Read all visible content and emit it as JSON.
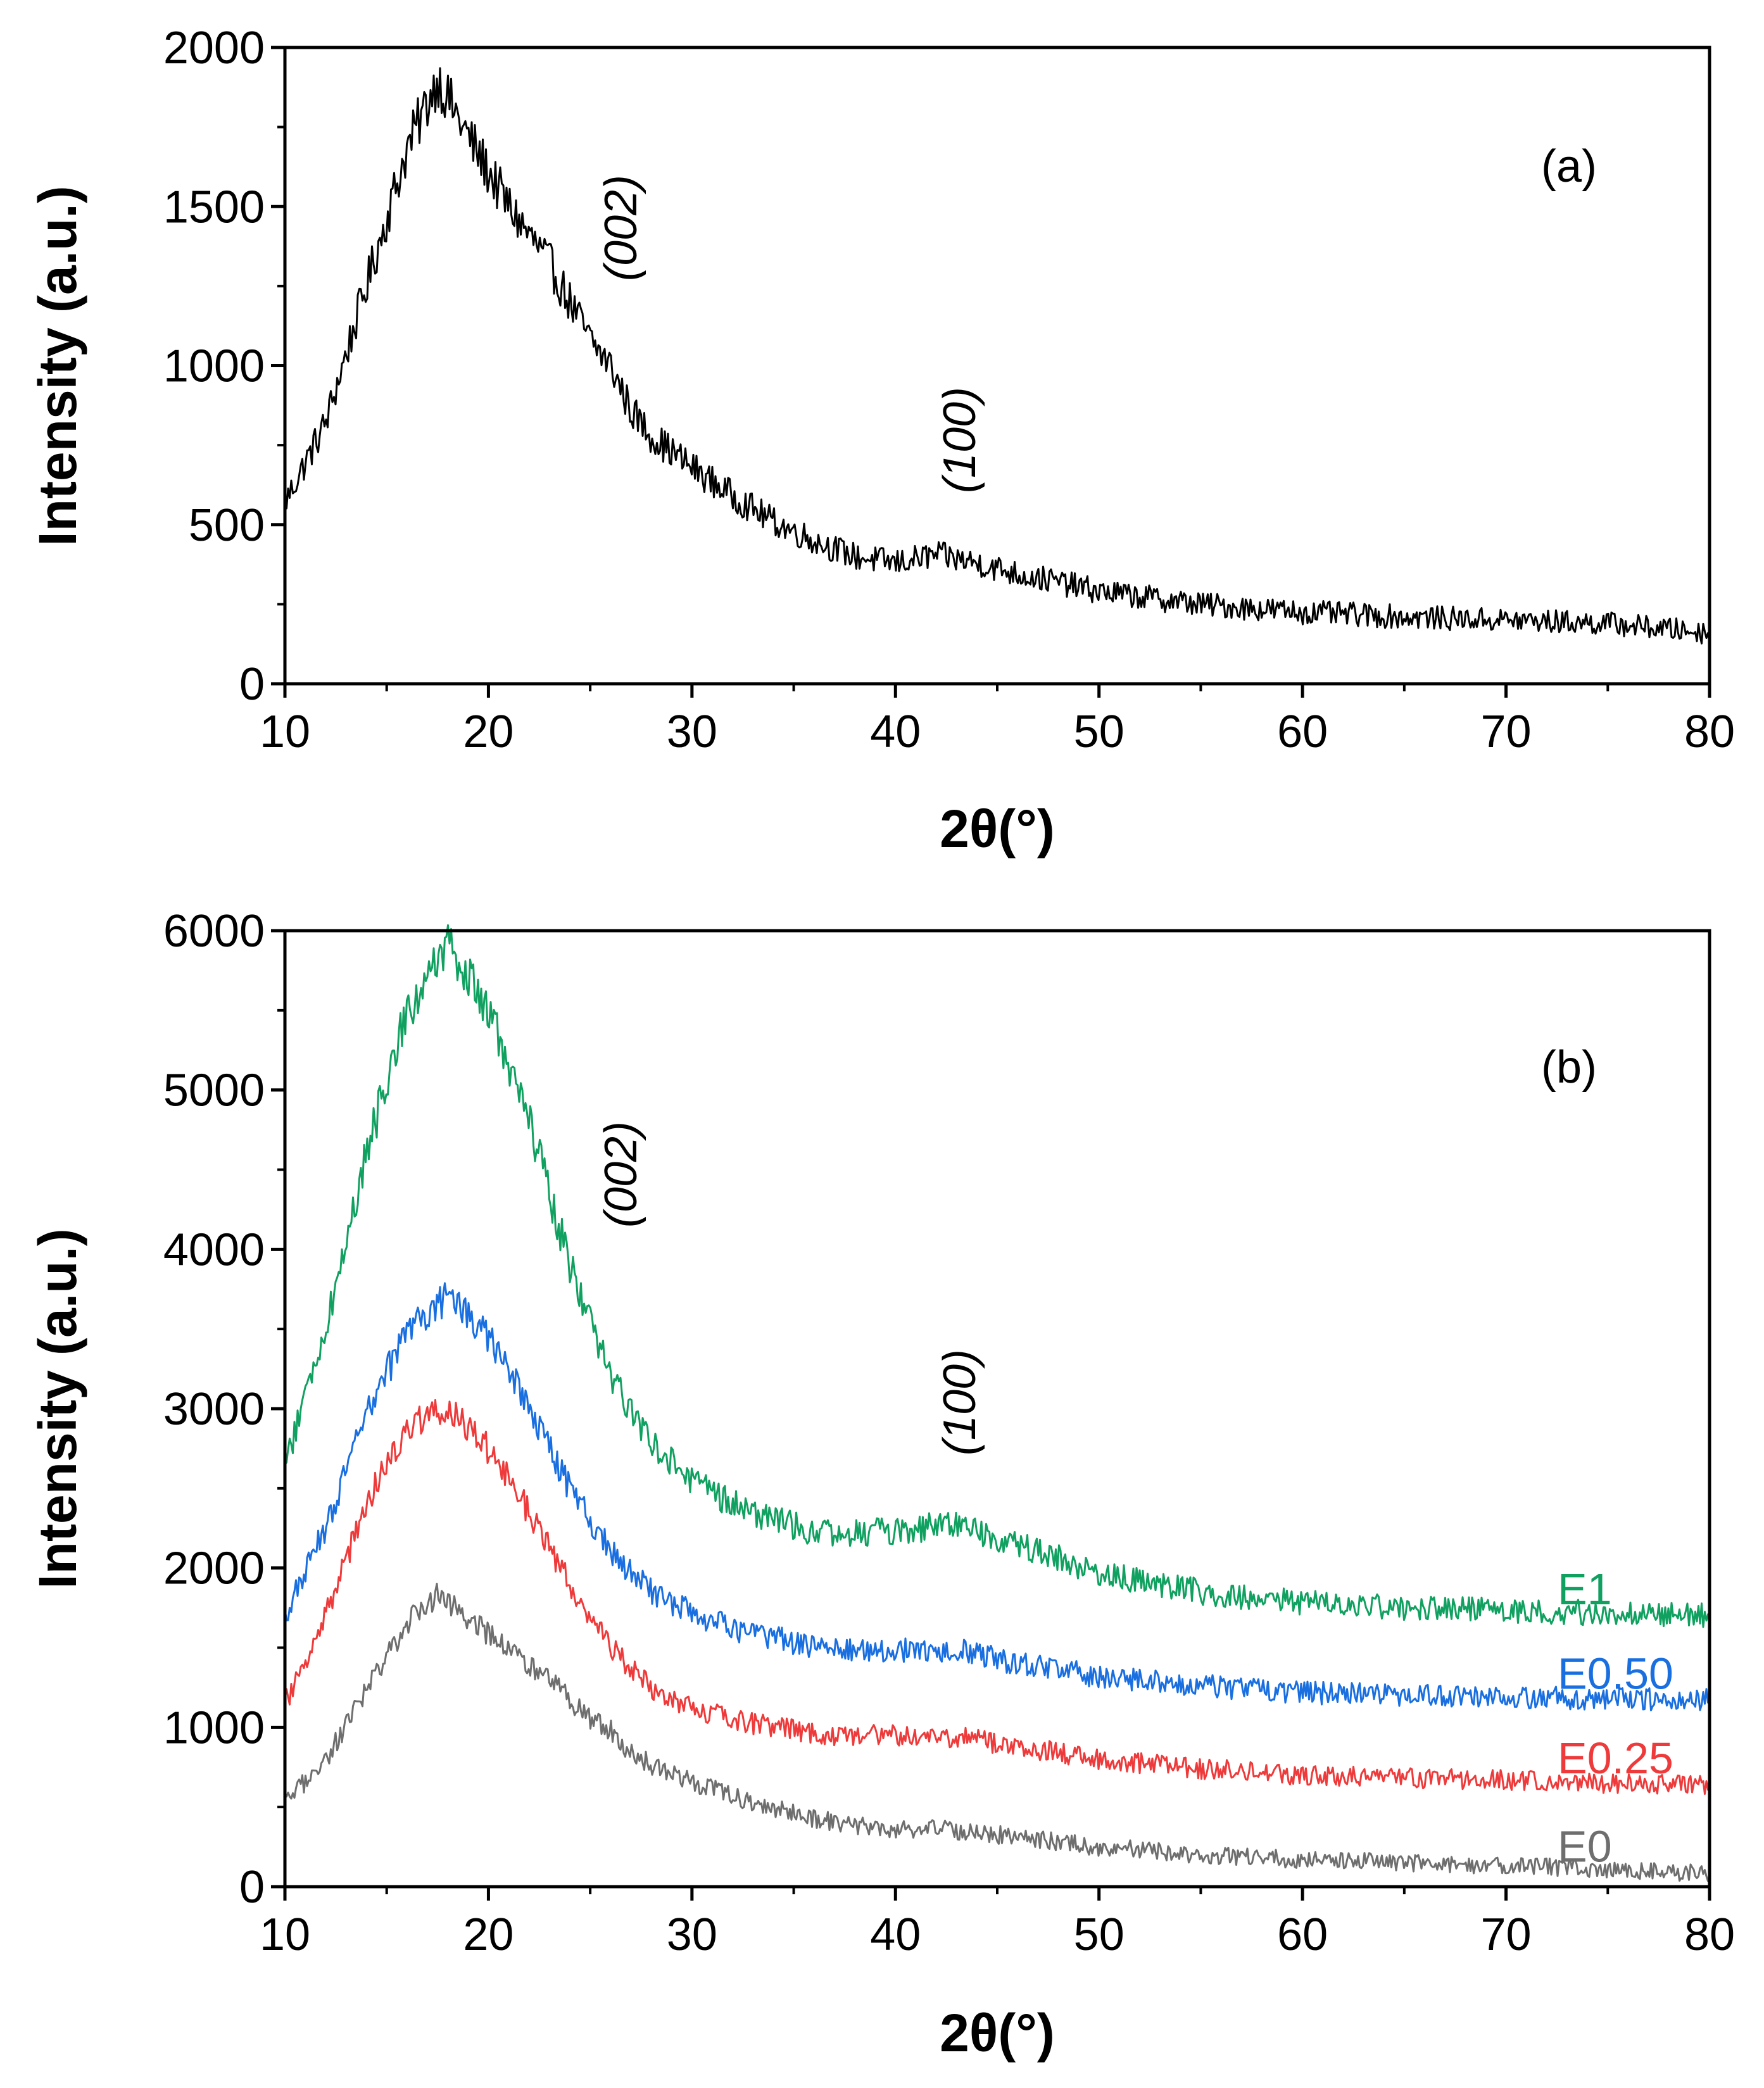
{
  "chart_data": [
    {
      "type": "line",
      "panel_label": "(a)",
      "xlabel": "2θ(°)",
      "ylabel": "Intensity (a.u.)",
      "xlim": [
        10,
        80
      ],
      "ylim": [
        0,
        2000
      ],
      "xticks": [
        "10",
        "20",
        "30",
        "40",
        "50",
        "60",
        "70",
        "80"
      ],
      "yticks": [
        "0",
        "500",
        "1000",
        "1500",
        "2000"
      ],
      "grid": false,
      "annotations": [
        {
          "text": "(002)",
          "x": 26.5,
          "y": 1500
        },
        {
          "text": "(100)",
          "x": 43,
          "y": 750
        }
      ],
      "series": [
        {
          "color": "#000000",
          "x": [
            10,
            12,
            14,
            16,
            17.5,
            19,
            21,
            23,
            25,
            26,
            27,
            28,
            30,
            32,
            34,
            36,
            38,
            40,
            42,
            44,
            46,
            48,
            50,
            55,
            60,
            65,
            70,
            75,
            80
          ],
          "values": [
            570,
            820,
            1250,
            1680,
            1900,
            1720,
            1500,
            1320,
            1080,
            1000,
            860,
            780,
            680,
            590,
            510,
            450,
            400,
            380,
            405,
            380,
            345,
            320,
            290,
            250,
            225,
            210,
            200,
            190,
            160
          ]
        }
      ]
    },
    {
      "type": "line",
      "panel_label": "(b)",
      "xlabel": "2θ(°)",
      "ylabel": "Intensity (a.u.)",
      "xlim": [
        10,
        80
      ],
      "ylim": [
        0,
        6000
      ],
      "xticks": [
        "10",
        "20",
        "30",
        "40",
        "50",
        "60",
        "70",
        "80"
      ],
      "yticks": [
        "0",
        "1000",
        "2000",
        "3000",
        "4000",
        "5000",
        "6000"
      ],
      "grid": false,
      "legend": "inline labels at right end",
      "annotations": [
        {
          "text": "(002)",
          "x": 26.5,
          "y": 4700
        },
        {
          "text": "(100)",
          "x": 43,
          "y": 2700
        }
      ],
      "series": [
        {
          "name": "E1",
          "color": "#10a060",
          "x": [
            10,
            12,
            14,
            16,
            18,
            20,
            22,
            24,
            26,
            28,
            30,
            32,
            34,
            36,
            38,
            40,
            43,
            46,
            50,
            55,
            60,
            65,
            70,
            75,
            80
          ],
          "values": [
            2650,
            3500,
            4600,
            5500,
            5900,
            5500,
            4800,
            3900,
            3200,
            2800,
            2550,
            2400,
            2300,
            2230,
            2220,
            2230,
            2280,
            2150,
            1970,
            1850,
            1780,
            1750,
            1730,
            1720,
            1700
          ]
        },
        {
          "name": "E0.50",
          "color": "#1a6fe0",
          "x": [
            10,
            12,
            14,
            16,
            18,
            20,
            22,
            24,
            26,
            28,
            30,
            32,
            34,
            36,
            38,
            40,
            43,
            46,
            50,
            55,
            60,
            65,
            70,
            75,
            80
          ],
          "values": [
            1700,
            2250,
            2950,
            3500,
            3700,
            3450,
            3000,
            2500,
            2100,
            1850,
            1720,
            1620,
            1560,
            1510,
            1490,
            1480,
            1490,
            1400,
            1320,
            1260,
            1220,
            1200,
            1190,
            1180,
            1170
          ]
        },
        {
          "name": "E0.25",
          "color": "#ee3a3a",
          "x": [
            10,
            12,
            14,
            16,
            18,
            20,
            22,
            24,
            26,
            28,
            30,
            32,
            34,
            36,
            38,
            40,
            43,
            46,
            50,
            55,
            60,
            65,
            70,
            75,
            80
          ],
          "values": [
            1150,
            1700,
            2400,
            2900,
            3000,
            2750,
            2350,
            1900,
            1500,
            1250,
            1120,
            1050,
            1000,
            960,
            950,
            950,
            940,
            880,
            800,
            740,
            700,
            680,
            670,
            650,
            640
          ]
        },
        {
          "name": "E0",
          "color": "#6e6e6e",
          "x": [
            10,
            12,
            14,
            16,
            17.5,
            19,
            21,
            23,
            25,
            26,
            27,
            28,
            30,
            32,
            34,
            36,
            38,
            40,
            42,
            44,
            46,
            48,
            50,
            55,
            60,
            65,
            70,
            75,
            80
          ],
          "values": [
            520,
            800,
            1230,
            1650,
            1830,
            1690,
            1480,
            1290,
            1050,
            980,
            840,
            760,
            660,
            570,
            490,
            430,
            380,
            360,
            360,
            340,
            310,
            280,
            250,
            200,
            170,
            150,
            130,
            110,
            80
          ]
        }
      ]
    }
  ]
}
